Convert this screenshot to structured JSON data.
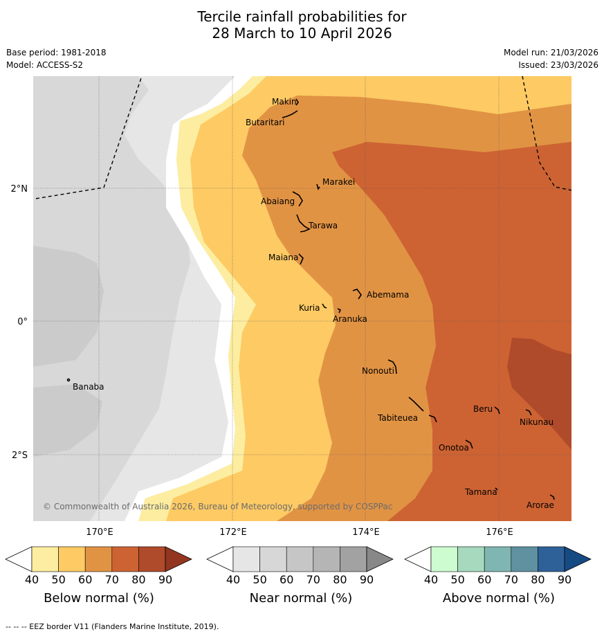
{
  "title": {
    "line1": "Tercile rainfall probabilities for",
    "line2": "28 March to 10 April 2026"
  },
  "meta": {
    "base_period": "Base period: 1981-2018",
    "model": "Model: ACCESS-S2",
    "model_run": "Model run: 21/03/2026",
    "issued": "Issued: 23/03/2026"
  },
  "map": {
    "credit": "© Commonwealth of Australia 2026, Bureau of Meteorology, supported by COSPPac",
    "lat_labels": [
      "2°N",
      "0°",
      "2°S"
    ],
    "lon_labels": [
      "170°E",
      "172°E",
      "174°E",
      "176°E"
    ],
    "islands": [
      {
        "name": "Makin"
      },
      {
        "name": "Butaritari"
      },
      {
        "name": "Marakei"
      },
      {
        "name": "Abaiang"
      },
      {
        "name": "Tarawa"
      },
      {
        "name": "Maiana"
      },
      {
        "name": "Abemama"
      },
      {
        "name": "Kuria"
      },
      {
        "name": "Aranuka"
      },
      {
        "name": "Banaba"
      },
      {
        "name": "Nonouti"
      },
      {
        "name": "Beru"
      },
      {
        "name": "Tabiteuea"
      },
      {
        "name": "Nikunau"
      },
      {
        "name": "Onotoa"
      },
      {
        "name": "Tamana"
      },
      {
        "name": "Arorae"
      }
    ]
  },
  "colorbars": [
    {
      "title": "Below normal (%)",
      "ticks": [
        "40",
        "50",
        "60",
        "70",
        "80",
        "90"
      ],
      "colors": [
        "#fdeda0",
        "#fdca64",
        "#e19344",
        "#cd6333",
        "#af4b2b",
        "#92361f"
      ]
    },
    {
      "title": "Near normal (%)",
      "ticks": [
        "40",
        "50",
        "60",
        "70",
        "80",
        "90"
      ],
      "colors": [
        "#e6e6e6",
        "#d7d7d7",
        "#c6c6c6",
        "#b5b5b5",
        "#a2a2a2",
        "#888888"
      ]
    },
    {
      "title": "Above normal (%)",
      "ticks": [
        "40",
        "50",
        "60",
        "70",
        "80",
        "90"
      ],
      "colors": [
        "#ccfcd0",
        "#a6d9bd",
        "#80b6b1",
        "#5f91a0",
        "#2f6199",
        "#164a83"
      ]
    }
  ],
  "footer": "--  --  -- EEZ border V11 (Flanders Marine Institute, 2019)."
}
